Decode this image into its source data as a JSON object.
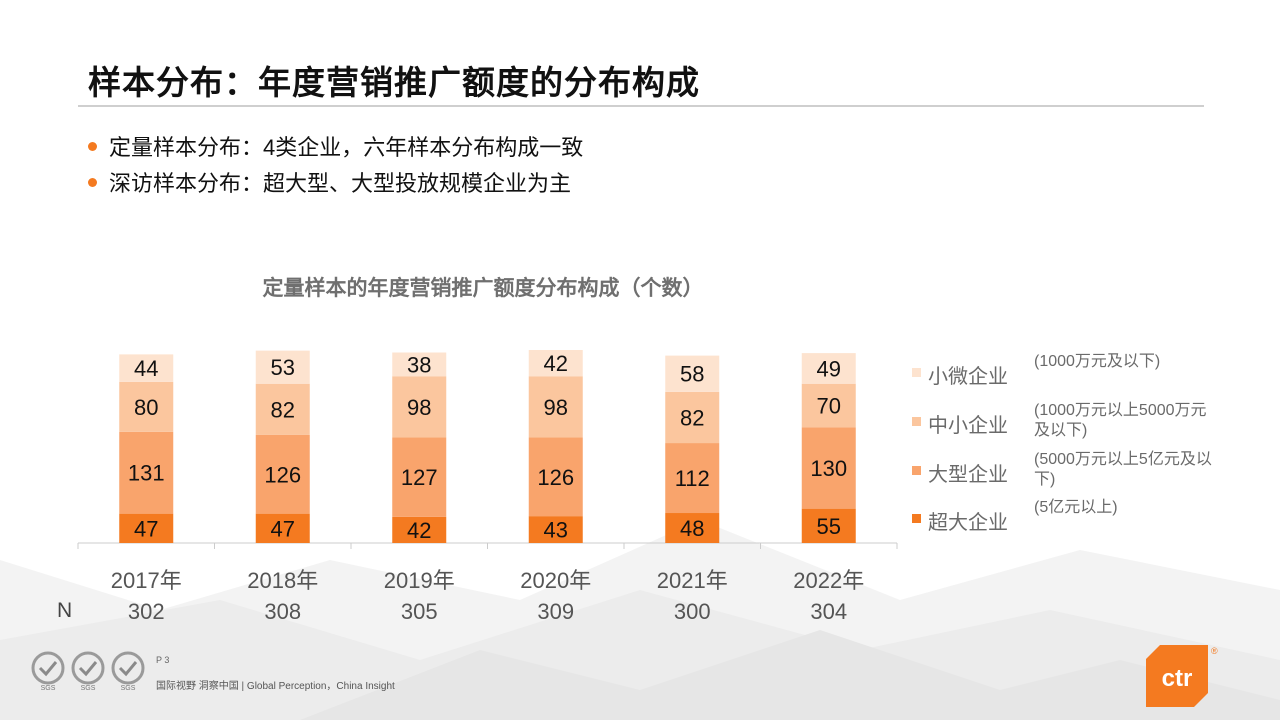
{
  "slide": {
    "title": "样本分布：年度营销推广额度的分布构成",
    "bullets": [
      "定量样本分布：4类企业，六年样本分布构成一致",
      "深访样本分布：超大型、大型投放规模企业为主"
    ],
    "n_label": "N",
    "page_number": "P 3",
    "footer_text": "国际视野  洞察中国 |  Global Perception，China Insight",
    "sgs_labels": [
      "SGS",
      "SGS",
      "SGS"
    ],
    "brand_logo_text": "ctr",
    "brand_reg_mark": "®"
  },
  "colors": {
    "accent": "#f47a20",
    "super_large": "#f47a20",
    "large": "#f9a46c",
    "medium_small": "#fbc69e",
    "micro": "#fde3cf"
  },
  "chart_data": {
    "type": "bar",
    "stacked": true,
    "title": "定量样本的年度营销推广额度分布构成（个数）",
    "categories": [
      "2017年",
      "2018年",
      "2019年",
      "2020年",
      "2021年",
      "2022年"
    ],
    "totals": [
      "302",
      "308",
      "305",
      "309",
      "300",
      "304"
    ],
    "series": [
      {
        "name": "超大企业",
        "desc": "(5亿元以上)",
        "color": "#f47a20",
        "values": [
          47,
          47,
          42,
          43,
          48,
          55
        ]
      },
      {
        "name": "大型企业",
        "desc": "(5000万元以上5亿元及以下)",
        "color": "#f9a46c",
        "values": [
          131,
          126,
          127,
          126,
          112,
          130
        ]
      },
      {
        "name": "中小企业",
        "desc": "(1000万元以上5000万元及以下)",
        "color": "#fbc69e",
        "values": [
          80,
          82,
          98,
          98,
          82,
          70
        ]
      },
      {
        "name": "小微企业",
        "desc": "(1000万元及以下)",
        "color": "#fde3cf",
        "values": [
          44,
          53,
          38,
          42,
          58,
          49
        ]
      }
    ],
    "legend_position": "right",
    "grid": false
  }
}
